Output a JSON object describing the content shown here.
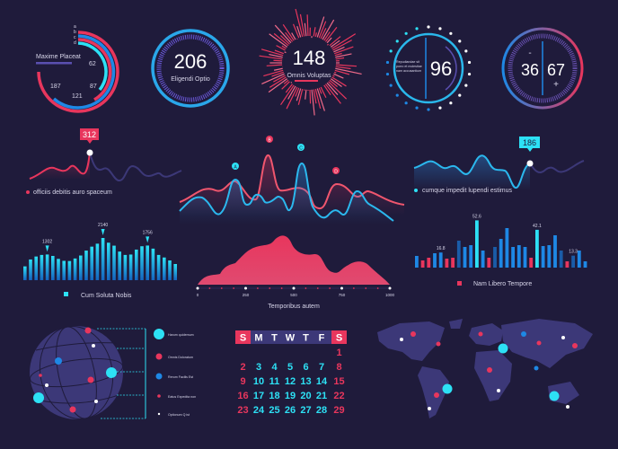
{
  "colors": {
    "background": "#1f1b3b",
    "pink": "#e8365d",
    "blue": "#1e88e5",
    "cyan": "#2de1f5",
    "dark_blue": "#1a5ca8",
    "purple": "#3c3878"
  },
  "gauges": {
    "radial": {
      "title": "Maxime Placeat",
      "series_labels": [
        "a",
        "b",
        "c",
        "d"
      ],
      "values": [
        "62",
        "87",
        "121",
        "187"
      ]
    },
    "g206": {
      "value": "206",
      "label": "Eligendi Optio"
    },
    "g148": {
      "value": "148",
      "label": "Omnis Voluptas"
    },
    "g96": {
      "value": "96",
      "text": [
        "Repudiandae sit",
        "porro et molestiae",
        "nam accusantium"
      ]
    },
    "g3667": {
      "left": "36",
      "right": "67",
      "minus": "-",
      "plus": "+"
    }
  },
  "line_left": {
    "callout": "312",
    "legend": "officiis debitis auro spaceum"
  },
  "line_right": {
    "callout": "186",
    "legend": "cumque impedit lupendi estimus"
  },
  "multi_line": {
    "markers": [
      "A",
      "B",
      "C",
      "D"
    ]
  },
  "calendar": {
    "weekdays": [
      "S",
      "M",
      "T",
      "W",
      "T",
      "F",
      "S"
    ],
    "weeks": [
      [
        "",
        "",
        "",
        "",
        "",
        "",
        "1"
      ],
      [
        "2",
        "3",
        "4",
        "5",
        "6",
        "7",
        "8"
      ],
      [
        "9",
        "10",
        "11",
        "12",
        "13",
        "14",
        "15"
      ],
      [
        "16",
        "17",
        "18",
        "19",
        "20",
        "21",
        "22"
      ],
      [
        "23",
        "24",
        "25",
        "26",
        "27",
        "28",
        "29"
      ]
    ]
  },
  "globe_legend": [
    "Harum quidemum",
    "Omnis Doloratum",
    "Rerum Facilis Est",
    "Eatus Expedita non",
    "Optionum Q ist"
  ],
  "chart_data": [
    {
      "type": "bar",
      "legend": "Cum Soluta Nobis",
      "annotations": [
        "1302",
        "2140",
        "1756"
      ],
      "values": [
        700,
        1050,
        1200,
        1280,
        1302,
        1230,
        1080,
        980,
        970,
        1100,
        1250,
        1500,
        1700,
        1850,
        2140,
        1900,
        1750,
        1450,
        1280,
        1300,
        1550,
        1720,
        1756,
        1600,
        1280,
        1150,
        1000,
        820
      ]
    },
    {
      "type": "bar",
      "legend": "Nam Libero Tempore",
      "annotations": [
        "16.8",
        "52.6",
        "42.1",
        "13.3"
      ],
      "values": [
        13,
        8,
        11,
        16,
        16.8,
        10,
        11,
        30,
        23,
        25,
        52.6,
        19,
        11,
        23,
        32,
        44,
        23,
        25,
        23,
        11,
        42.1,
        24,
        25,
        36,
        19,
        7,
        13.3,
        19,
        7
      ],
      "bar_colors": [
        "b",
        "p",
        "p",
        "b",
        "b",
        "p",
        "p",
        "d",
        "b",
        "b",
        "l",
        "b",
        "p",
        "d",
        "b",
        "b",
        "b",
        "b",
        "b",
        "p",
        "l",
        "b",
        "b",
        "b",
        "d",
        "p",
        "d",
        "b",
        "b"
      ]
    },
    {
      "type": "area",
      "xlabel": "Temporibus autem",
      "xticks": [
        "0",
        "250",
        "500",
        "750",
        "1000"
      ],
      "xlim": [
        0,
        1000
      ]
    }
  ]
}
